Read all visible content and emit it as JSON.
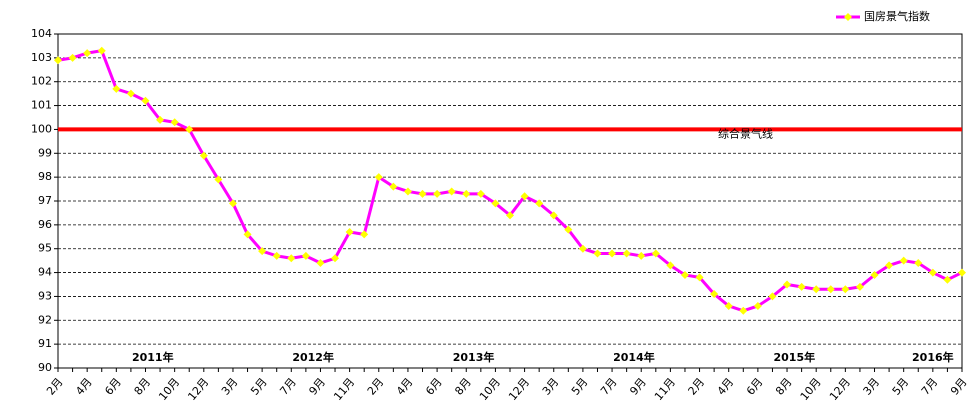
{
  "chart_data": {
    "type": "line",
    "categories": [
      "2月",
      null,
      "4月",
      null,
      "6月",
      null,
      "8月",
      null,
      "10月",
      null,
      "12月",
      null,
      "3月",
      null,
      "5月",
      null,
      "7月",
      null,
      "9月",
      null,
      "11月",
      null,
      "2月",
      null,
      "4月",
      null,
      "6月",
      null,
      "8月",
      null,
      "10月",
      null,
      "12月",
      null,
      "3月",
      null,
      "5月",
      null,
      "7月",
      null,
      "9月",
      null,
      "11月",
      null,
      "2月",
      null,
      "4月",
      null,
      "6月",
      null,
      "8月",
      null,
      "10月",
      null,
      "12月",
      null,
      "3月",
      null,
      "5月",
      null,
      "7月",
      null,
      "9月"
    ],
    "year_labels": [
      "2011年",
      "2012年",
      "2013年",
      "2014年",
      "2015年",
      "2016年"
    ],
    "series": [
      {
        "name": "国房景气指数",
        "color": "#ff00ff",
        "marker_color": "#ffff00",
        "values": [
          102.9,
          103.0,
          103.2,
          103.3,
          101.7,
          101.5,
          101.2,
          100.4,
          100.3,
          100.0,
          98.9,
          97.9,
          96.9,
          95.6,
          94.9,
          94.7,
          94.6,
          94.7,
          94.4,
          94.6,
          95.7,
          95.6,
          98.0,
          97.6,
          97.4,
          97.3,
          97.3,
          97.4,
          97.3,
          97.3,
          96.9,
          96.4,
          97.2,
          96.9,
          96.4,
          95.8,
          95.0,
          94.8,
          94.8,
          94.8,
          94.7,
          94.8,
          94.3,
          93.9,
          93.8,
          93.1,
          92.6,
          92.4,
          92.6,
          93.0,
          93.5,
          93.4,
          93.3,
          93.3,
          93.3,
          93.4,
          93.9,
          94.3,
          94.5,
          94.4,
          94.0,
          93.7,
          94.0
        ]
      }
    ],
    "reference_line": {
      "value": 100,
      "label": "综合景气线",
      "color": "#ff0000"
    },
    "ylim": [
      90,
      104
    ],
    "yticks": [
      90,
      91,
      92,
      93,
      94,
      95,
      96,
      97,
      98,
      99,
      100,
      101,
      102,
      103,
      104
    ],
    "grid": true,
    "legend": "top-right"
  }
}
